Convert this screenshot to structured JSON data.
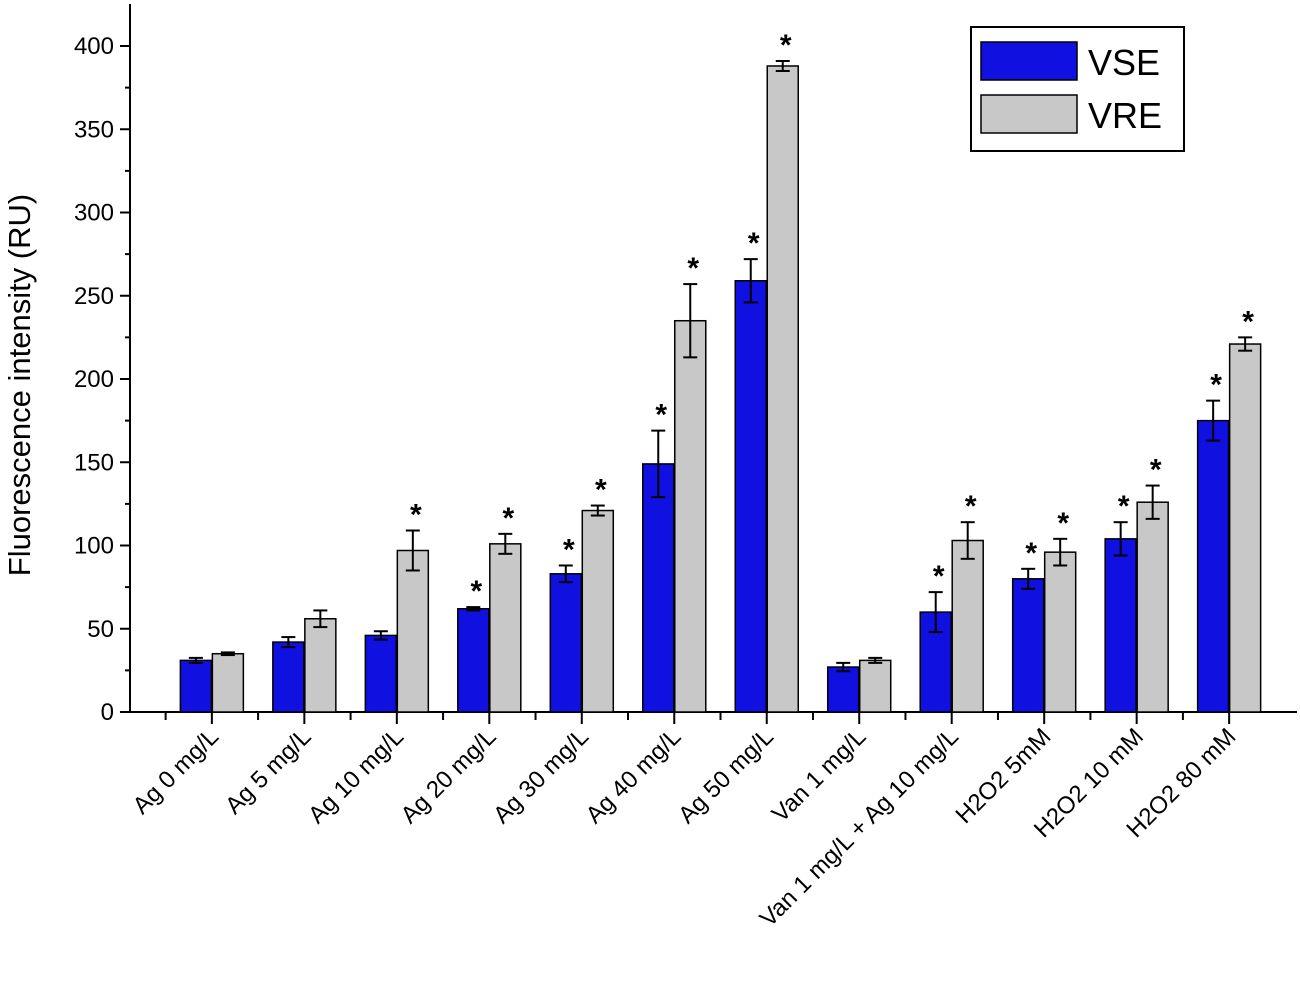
{
  "chart_data": {
    "type": "bar",
    "ylabel": "Fluorescence intensity (RU)",
    "xlabel": "",
    "ylim": [
      0,
      425
    ],
    "yticks": [
      0,
      50,
      100,
      150,
      200,
      250,
      300,
      350,
      400
    ],
    "grid": false,
    "legend_position": "top-right",
    "categories": [
      "Ag 0 mg/L",
      "Ag 5 mg/L",
      "Ag 10 mg/L",
      "Ag 20 mg/L",
      "Ag 30 mg/L",
      "Ag 40 mg/L",
      "Ag 50 mg/L",
      "Van 1 mg/L",
      "Van 1 mg/L + Ag 10 mg/L",
      "H2O2 5mM",
      "H2O2 10 mM",
      "H2O2 80 mM"
    ],
    "series": [
      {
        "name": "VSE",
        "color": "#1010e0",
        "values": [
          31,
          42,
          46,
          62,
          83,
          149,
          259,
          27,
          60,
          80,
          104,
          175
        ],
        "errors": [
          1.5,
          3,
          2.5,
          1,
          5,
          20,
          13,
          2.5,
          12,
          6,
          10,
          12
        ],
        "significant": [
          false,
          false,
          false,
          true,
          true,
          true,
          true,
          false,
          true,
          true,
          true,
          true
        ]
      },
      {
        "name": "VRE",
        "color": "#c8c8c8",
        "values": [
          35,
          56,
          97,
          101,
          121,
          235,
          388,
          31,
          103,
          96,
          126,
          221
        ],
        "errors": [
          0.8,
          5,
          12,
          6,
          3,
          22,
          3,
          1.5,
          11,
          8,
          10,
          4
        ],
        "significant": [
          false,
          false,
          true,
          true,
          true,
          true,
          true,
          false,
          true,
          true,
          true,
          true
        ]
      }
    ],
    "annotation_symbol": "*"
  }
}
